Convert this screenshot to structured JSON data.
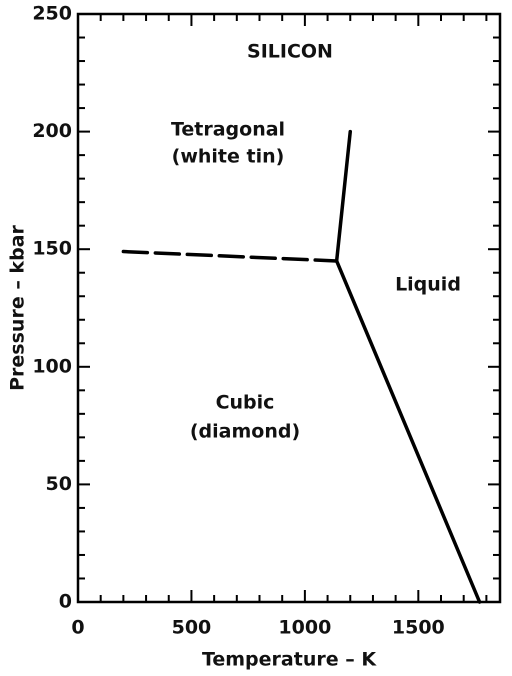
{
  "chart_data": {
    "type": "line",
    "x_label": "Temperature – K",
    "y_label": "Pressure – kbar",
    "xlim": [
      0,
      1860
    ],
    "ylim": [
      0,
      250
    ],
    "xticks": [
      0,
      500,
      1000,
      1500
    ],
    "yticks": [
      0,
      50,
      100,
      150,
      200,
      250
    ],
    "xminorticks": [
      100,
      200,
      300,
      400,
      600,
      700,
      800,
      900,
      1100,
      1200,
      1300,
      1400,
      1600,
      1700,
      1800
    ],
    "yminorticks": [
      10,
      20,
      30,
      40,
      60,
      70,
      80,
      90,
      110,
      120,
      130,
      140,
      160,
      170,
      180,
      190,
      210,
      220,
      230,
      240
    ],
    "series": [
      {
        "color": "#000000",
        "dashed": true,
        "x": [
          200,
          1140
        ],
        "values": [
          149,
          145
        ]
      },
      {
        "color": "#000000",
        "dashed": false,
        "x": [
          1140,
          1200
        ],
        "values": [
          145,
          200
        ]
      },
      {
        "color": "#000000",
        "dashed": false,
        "x": [
          1140,
          1770
        ],
        "values": [
          145,
          0
        ]
      }
    ],
    "annotations": [
      "SILICON",
      "Tetragonal",
      "(white tin)",
      "Liquid",
      "Cubic",
      "(diamond)"
    ]
  }
}
